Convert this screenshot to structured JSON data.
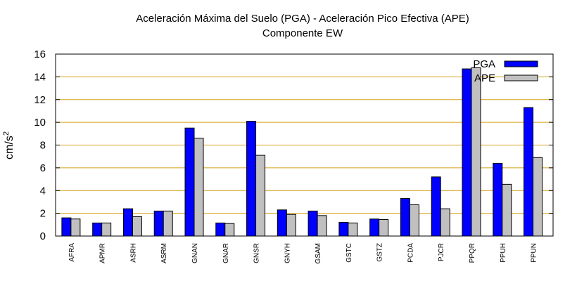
{
  "chart_data": {
    "type": "bar",
    "title": "Aceleración Máxima del Suelo (PGA) -  Aceleración Pico Efectiva (APE)",
    "subtitle": "Componente EW",
    "xlabel": "",
    "ylabel": "cm/s",
    "ylabel_superscript": "2",
    "ylim": [
      0,
      16
    ],
    "yticks": [
      0,
      2,
      4,
      6,
      8,
      10,
      12,
      14,
      16
    ],
    "grid": "horizontal",
    "legend_position": "top-right",
    "categories": [
      "AFRA",
      "APMR",
      "ASRH",
      "ASRM",
      "GNAN",
      "GNAR",
      "GNSR",
      "GNYH",
      "GSAM",
      "GSTC",
      "GSTZ",
      "PCDA",
      "PJCR",
      "PPQR",
      "PPUH",
      "PPUN"
    ],
    "series": [
      {
        "name": "PGA",
        "color": "#0000ff",
        "values": [
          1.6,
          1.15,
          2.4,
          2.2,
          9.5,
          1.15,
          10.1,
          2.3,
          2.2,
          1.2,
          1.5,
          3.3,
          5.2,
          14.7,
          6.4,
          11.3
        ]
      },
      {
        "name": "APE",
        "color": "#c0c0c0",
        "values": [
          1.5,
          1.15,
          1.7,
          2.2,
          8.6,
          1.1,
          7.1,
          1.9,
          1.8,
          1.15,
          1.45,
          2.75,
          2.4,
          14.8,
          4.55,
          6.9
        ]
      }
    ],
    "gridline_color": "#d4a017"
  }
}
